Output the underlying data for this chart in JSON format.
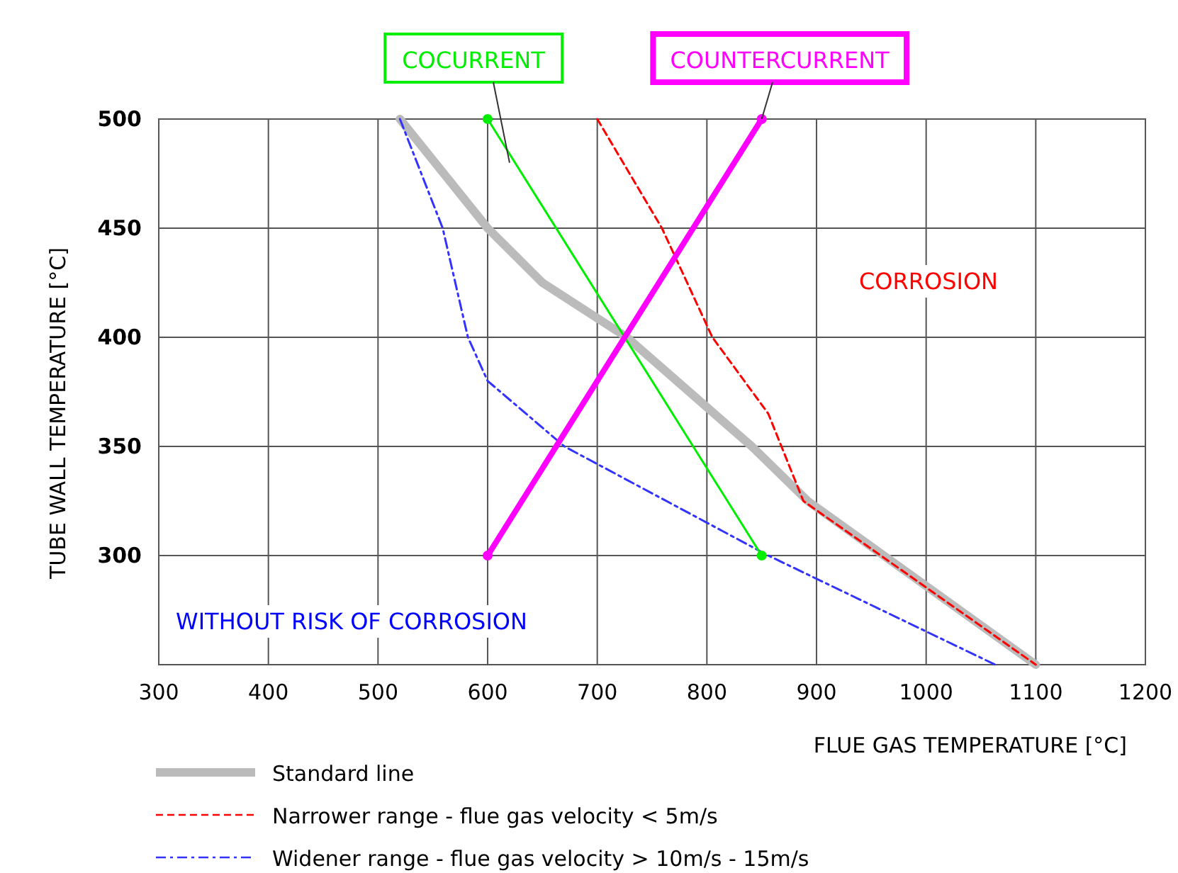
{
  "chart_data": {
    "type": "line",
    "xlabel": "FLUE GAS TEMPERATURE [°C]",
    "ylabel": "TUBE WALL TEMPERATURE [°C]",
    "xlim": [
      300,
      1200
    ],
    "xticks": [
      300,
      400,
      500,
      600,
      700,
      800,
      900,
      1000,
      1100,
      1200
    ],
    "ylim": [
      250,
      500
    ],
    "yticks": [
      {
        "value": 250,
        "label": null
      },
      300,
      350,
      400,
      450,
      500
    ],
    "grid": true,
    "legend": "bottom",
    "series": [
      {
        "name": "Standard line",
        "color": "#bbbbbb",
        "line_style": "solid",
        "x": [
          520,
          600,
          650,
          727,
          841,
          892,
          1100
        ],
        "values": [
          500,
          450,
          425,
          400,
          350,
          325,
          250
        ]
      },
      {
        "name": "Narrower range - flue gas velocity < 5m/s",
        "color": "#ff0000",
        "line_style": "dashed",
        "x": [
          700,
          759,
          805,
          856,
          888,
          1100
        ],
        "values": [
          500,
          450,
          400,
          365,
          325,
          250
        ]
      },
      {
        "name": "Widener range - flue gas velocity > 10m/s - 15m/s",
        "color": "#3333ff",
        "line_style": "dashdot",
        "x": [
          520,
          559,
          582,
          600,
          670,
          856,
          1063
        ],
        "values": [
          500,
          450,
          400,
          380,
          350,
          300,
          250
        ]
      },
      {
        "name": "COCURRENT",
        "color": "#00ee00",
        "line_style": "solid",
        "marker": "circle",
        "x": [
          600,
          850
        ],
        "values": [
          500,
          300
        ]
      },
      {
        "name": "COUNTERCURRENT",
        "color": "#ff00ff",
        "line_style": "solid",
        "marker": "circle",
        "x": [
          600,
          850
        ],
        "values": [
          300,
          500
        ]
      }
    ],
    "annotations": [
      "CORROSION",
      "WITHOUT RISK OF CORROSION"
    ]
  }
}
